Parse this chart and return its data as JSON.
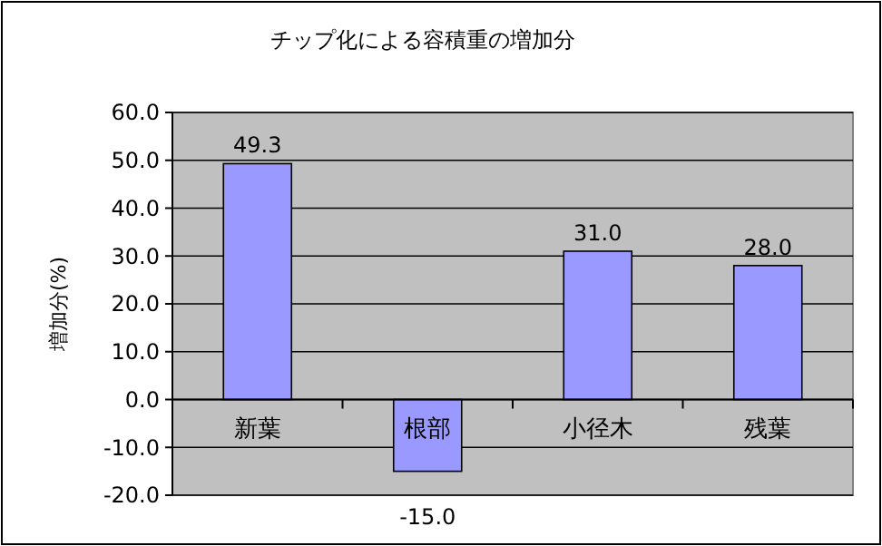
{
  "chart_data": {
    "type": "bar",
    "title": "チップ化による容積重の増加分",
    "ylabel": "増加分(%)",
    "categories": [
      "新葉",
      "根部",
      "小径木",
      "残葉"
    ],
    "values": [
      49.3,
      -15.0,
      31.0,
      28.0
    ],
    "value_labels": [
      "49.3",
      "-15.0",
      "31.0",
      "28.0"
    ],
    "color": "#9999ff",
    "ylim": [
      -20,
      60
    ],
    "yticks": [
      {
        "value": 60,
        "label": "60.0"
      },
      {
        "value": 50,
        "label": "50.0"
      },
      {
        "value": 40,
        "label": "40.0"
      },
      {
        "value": 30,
        "label": "30.0"
      },
      {
        "value": 20,
        "label": "20.0"
      },
      {
        "value": 10,
        "label": "10.0"
      },
      {
        "value": 0,
        "label": "0.0"
      },
      {
        "value": -10,
        "label": "-10.0"
      },
      {
        "value": -20,
        "label": "-20.0"
      }
    ],
    "grid": "y"
  }
}
